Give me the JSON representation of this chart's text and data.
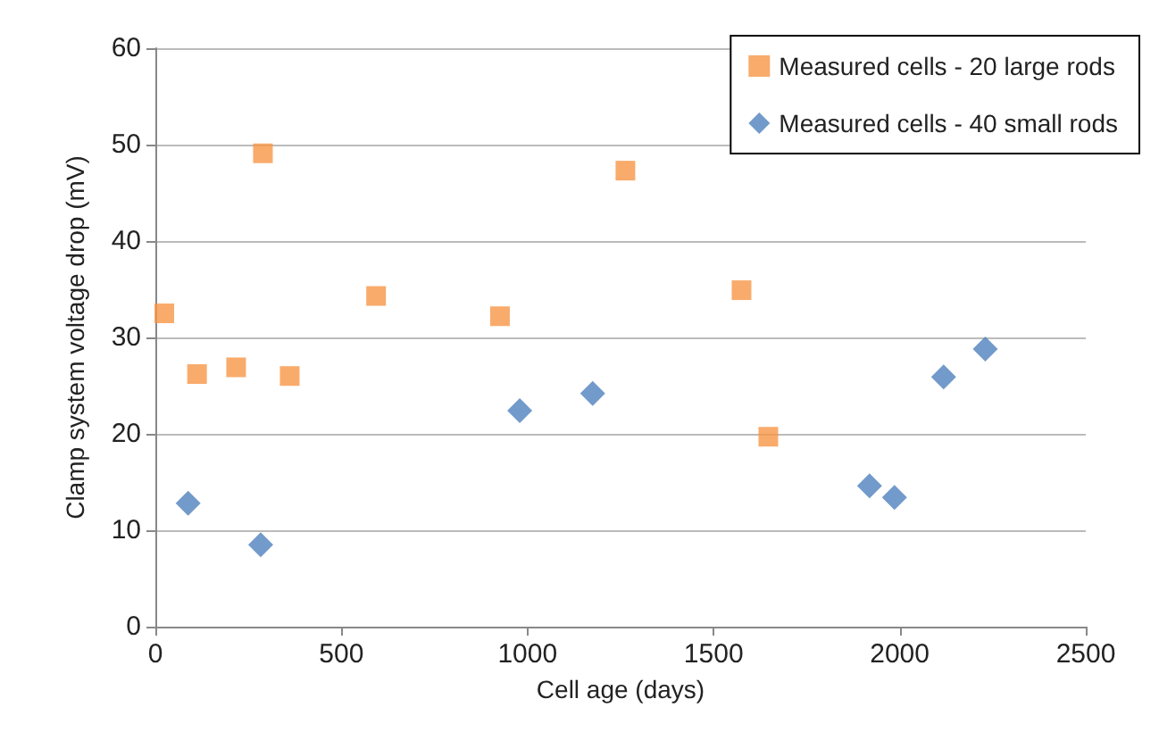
{
  "chart_data": {
    "type": "scatter",
    "xlabel": "Cell age (days)",
    "ylabel": "Clamp system voltage drop (mV)",
    "series": [
      {
        "name": "Measured cells - 20 large rods",
        "color": "#f79646",
        "marker": "square",
        "x": [
          24,
          112,
          217,
          289,
          361,
          593,
          926,
          1263,
          1575,
          1647
        ],
        "values": [
          32.5,
          26.2,
          26.9,
          49.1,
          26.0,
          34.3,
          32.2,
          47.3,
          34.9,
          19.7
        ]
      },
      {
        "name": "Measured cells - 40 small rods",
        "color": "#4f81bd",
        "marker": "diamond",
        "x": [
          88,
          283,
          979,
          1175,
          1919,
          1986,
          2118,
          2230
        ],
        "values": [
          12.8,
          8.5,
          22.4,
          24.2,
          14.6,
          13.4,
          25.9,
          28.8
        ]
      }
    ],
    "xlim": [
      0,
      2500
    ],
    "xticks": [
      0,
      500,
      1000,
      1500,
      2000,
      2500
    ],
    "ylim": [
      0,
      60
    ],
    "yticks": [
      0,
      10,
      20,
      30,
      40,
      50,
      60
    ],
    "grid": "y",
    "legend": "top right"
  }
}
